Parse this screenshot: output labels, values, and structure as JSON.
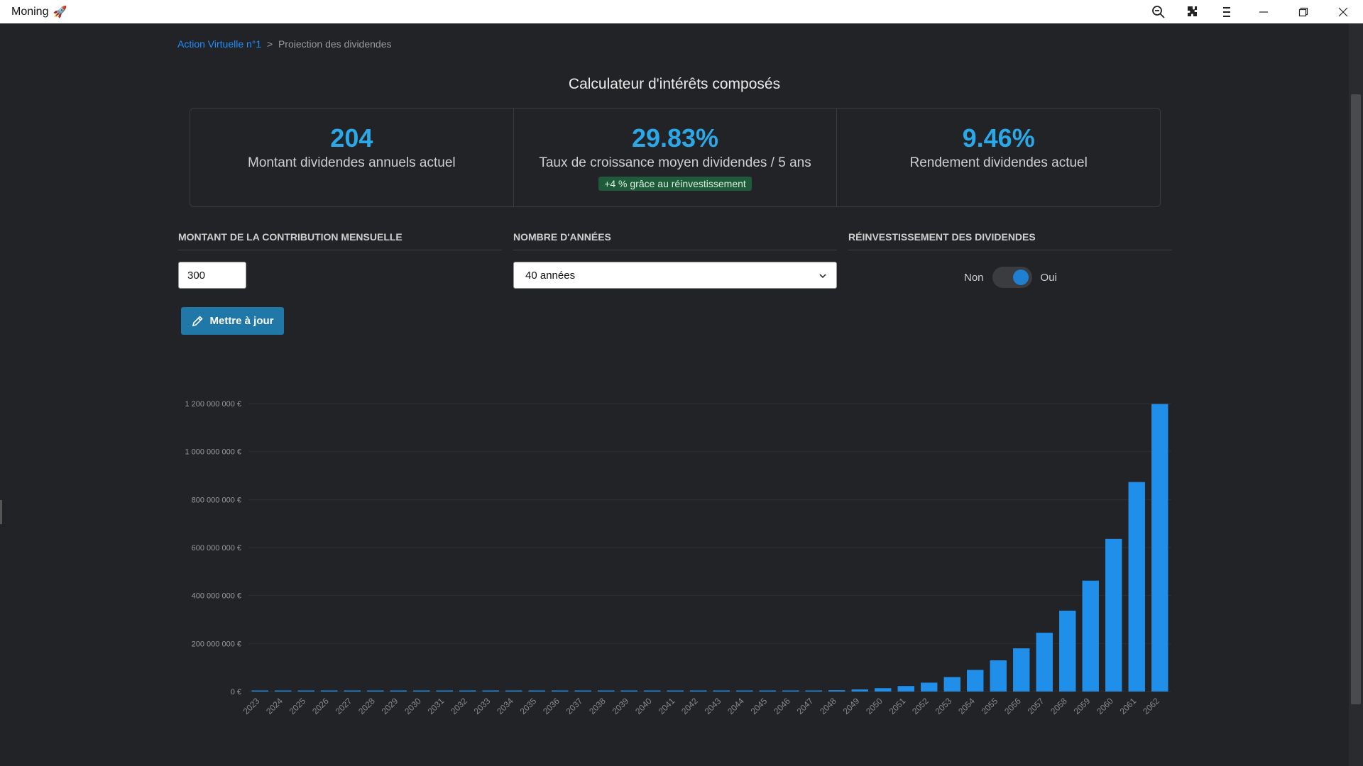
{
  "window": {
    "title": "Moning",
    "title_icon": "rocket-icon",
    "toolbar_icons": [
      "zoom-out-icon",
      "extensions-icon",
      "menu-icon"
    ],
    "controls": [
      "minimize-icon",
      "restore-icon",
      "close-icon"
    ]
  },
  "breadcrumb": {
    "link": "Action Virtuelle n°1",
    "separator": ">",
    "current": "Projection des dividendes"
  },
  "page": {
    "title": "Calculateur d'intérêts composés"
  },
  "stats": [
    {
      "value": "204",
      "label": "Montant dividendes annuels actuel"
    },
    {
      "value": "29.83%",
      "label": "Taux de croissance moyen dividendes / 5 ans",
      "badge": "+4 % grâce au réinvestissement"
    },
    {
      "value": "9.46%",
      "label": "Rendement dividendes actuel"
    }
  ],
  "form": {
    "contribution_label": "MONTANT DE LA CONTRIBUTION MENSUELLE",
    "contribution_value": "300",
    "years_label": "NOMBRE D'ANNÉES",
    "years_value": "40 années",
    "reinvest_label": "RÉINVESTISSEMENT DES DIVIDENDES",
    "toggle_off": "Non",
    "toggle_on": "Oui",
    "toggle_state": true,
    "update_button": "Mettre à jour"
  },
  "colors": {
    "accent": "#2aa8e8",
    "bar": "#1f8fea",
    "badge_bg": "#1f5a3a",
    "button": "#1f78a8"
  },
  "chart_data": {
    "type": "bar",
    "categories": [
      "2023",
      "2024",
      "2025",
      "2026",
      "2027",
      "2028",
      "2029",
      "2030",
      "2031",
      "2032",
      "2033",
      "2034",
      "2035",
      "2036",
      "2037",
      "2038",
      "2039",
      "2040",
      "2041",
      "2042",
      "2043",
      "2044",
      "2045",
      "2046",
      "2047",
      "2048",
      "2049",
      "2050",
      "2051",
      "2052",
      "2053",
      "2054",
      "2055",
      "2056",
      "2057",
      "2058",
      "2059",
      "2060",
      "2061",
      "2062"
    ],
    "values": [
      50,
      60,
      75,
      95,
      120,
      150,
      190,
      240,
      300,
      380,
      480,
      600,
      760,
      960,
      1210,
      1530,
      1930,
      2430,
      3070,
      3880,
      500000,
      800000,
      1300000,
      2000000,
      3300000,
      5400000,
      8700000,
      14000000,
      23000000,
      37000000,
      60000000,
      90000000,
      130000000,
      180000000,
      245000000,
      337000000,
      462000000,
      636000000,
      873000000,
      1198000000
    ],
    "yticks": [
      "0 €",
      "200 000 000 €",
      "400 000 000 €",
      "600 000 000 €",
      "800 000 000 €",
      "1 000 000 000 €",
      "1 200 000 000 €"
    ],
    "ylim": [
      0,
      1200000000
    ],
    "grid": true,
    "legend": "none"
  }
}
